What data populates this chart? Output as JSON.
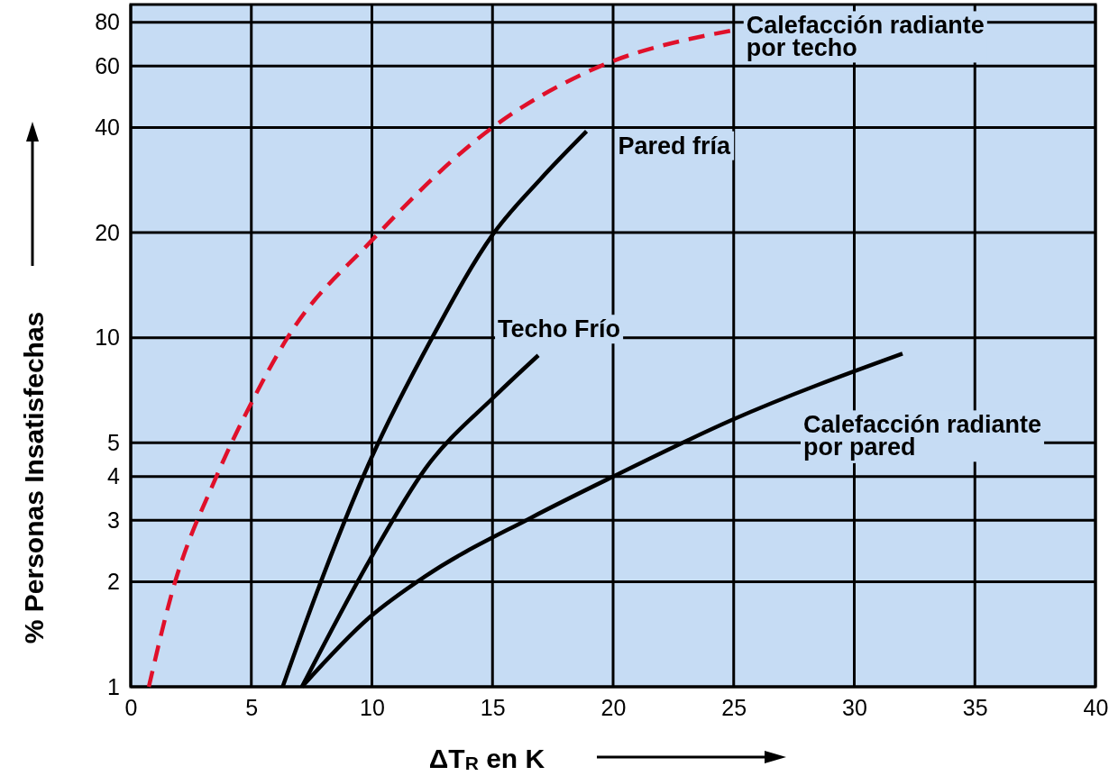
{
  "chart_data": {
    "type": "line",
    "xlabel": "ΔT$_{R}$ en K",
    "ylabel": "% Personas Insatisfechas",
    "log": "y",
    "grid": true,
    "xlim": [
      0,
      40
    ],
    "xticks": [
      0,
      5,
      10,
      15,
      20,
      25,
      30,
      35,
      40
    ],
    "ylim": [
      1,
      90
    ],
    "yticks": [
      1,
      2,
      3,
      4,
      5,
      10,
      20,
      40,
      60,
      80
    ],
    "series": [
      {
        "name": "Calefacción radiante por techo",
        "color": "#e0102a",
        "line_style": "dashed",
        "x": [
          0.75,
          1.7,
          3.55,
          5.05,
          6.5,
          10,
          15,
          19,
          25
        ],
        "values": [
          1,
          1.85,
          4,
          6.6,
          10,
          19,
          40,
          58,
          76
        ]
      },
      {
        "name": "Pared fría",
        "color": "#000000",
        "line_style": "solid",
        "x": [
          6.3,
          7.7,
          9.9,
          12.5,
          15,
          17,
          18.9
        ],
        "values": [
          1,
          1.85,
          4.4,
          10,
          19.7,
          28.5,
          39
        ]
      },
      {
        "name": "Techo Frío",
        "color": "#000000",
        "line_style": "solid",
        "x": [
          7.1,
          9.9,
          12.2,
          15.1,
          16.9
        ],
        "values": [
          1,
          2.3,
          4.2,
          6.8,
          8.9
        ]
      },
      {
        "name": "Calefacción radiante por pared",
        "color": "#000000",
        "line_style": "solid",
        "x": [
          7.1,
          9.9,
          12.2,
          16.6,
          20,
          24.9,
          32
        ],
        "values": [
          1,
          1.58,
          2.07,
          3.05,
          4,
          5.8,
          9
        ]
      }
    ]
  }
}
